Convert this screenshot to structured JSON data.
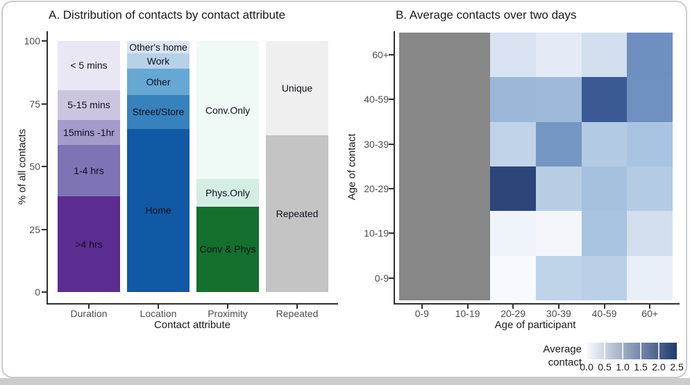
{
  "figure": {
    "background": "#ffffff",
    "card_border_color": "#c9cbcd",
    "missing_color": "#878787"
  },
  "chart_data": [
    {
      "type": "bar",
      "stacked": true,
      "title": "A. Distribution of contacts by contact attribute",
      "xlabel": "Contact attribute",
      "ylabel": "% of all contacts",
      "ylim": [
        0,
        100
      ],
      "yticks": [
        0,
        25,
        50,
        75,
        100
      ],
      "categories": [
        "Duration",
        "Location",
        "Proximity",
        "Repeated"
      ],
      "segment_order": "bottom-to-top",
      "bars": [
        {
          "category": "Duration",
          "segments": [
            {
              "label": ">4 hrs",
              "value": 38,
              "color": "#5b2d90"
            },
            {
              "label": "1-4 hrs",
              "value": 20.5,
              "color": "#7d73b5"
            },
            {
              "label": "15mins -1hr",
              "value": 10,
              "color": "#a49bcb"
            },
            {
              "label": "5-15 mins",
              "value": 12,
              "color": "#cbc5e0"
            },
            {
              "label": "< 5 mins",
              "value": 19.5,
              "color": "#e9e7f3"
            }
          ]
        },
        {
          "category": "Location",
          "segments": [
            {
              "label": "Home",
              "value": 65,
              "color": "#1159a4"
            },
            {
              "label": "Street/Store",
              "value": 13.5,
              "color": "#3781bd"
            },
            {
              "label": "Other",
              "value": 10.5,
              "color": "#66a7d3"
            },
            {
              "label": "Work",
              "value": 6,
              "color": "#b7d1e7"
            },
            {
              "label": "Other's home",
              "value": 5,
              "color": "#dbe4f2"
            }
          ]
        },
        {
          "category": "Proximity",
          "segments": [
            {
              "label": "Conv & Phys",
              "value": 34,
              "color": "#156f2d"
            },
            {
              "label": "Phys.Only",
              "value": 11,
              "color": "#d3ede3"
            },
            {
              "label": "Conv.Only",
              "value": 55,
              "color": "#eff9f6"
            }
          ]
        },
        {
          "category": "Repeated",
          "segments": [
            {
              "label": "Repeated",
              "value": 62.5,
              "color": "#c4c4c4"
            },
            {
              "label": "Unique",
              "value": 37.5,
              "color": "#efeff0"
            }
          ]
        }
      ]
    },
    {
      "type": "heatmap",
      "title": "B. Average contacts over two days",
      "xlabel": "Age of participant",
      "ylabel": "Age of contact",
      "x_categories": [
        "0-9",
        "10-19",
        "20-29",
        "30-39",
        "40-59",
        "60+"
      ],
      "y_categories_top_to_bottom": [
        "60+",
        "40-59",
        "30-39",
        "20-29",
        "10-19",
        "0-9"
      ],
      "missing_data_columns": [
        "0-9",
        "10-19"
      ],
      "missing_color": "#878787",
      "rows": [
        {
          "y": "60+",
          "values": [
            null,
            null,
            0.45,
            0.3,
            0.5,
            1.7
          ],
          "colors": [
            "#878787",
            "#878787",
            "#d8e2f0",
            "#e4ebf6",
            "#d3dfee",
            "#6f8fc0"
          ]
        },
        {
          "y": "40-59",
          "values": [
            null,
            null,
            1.2,
            1.2,
            2.3,
            1.65
          ],
          "colors": [
            "#878787",
            "#878787",
            "#9bb8d9",
            "#9dbada",
            "#3b5a95",
            "#6f90c1"
          ]
        },
        {
          "y": "30-39",
          "values": [
            null,
            null,
            0.8,
            1.6,
            0.95,
            1.0
          ],
          "colors": [
            "#878787",
            "#878787",
            "#c0d3e8",
            "#7396c3",
            "#b2cae2",
            "#a9c4e0"
          ]
        },
        {
          "y": "20-29",
          "values": [
            null,
            null,
            2.5,
            0.9,
            1.1,
            0.9
          ],
          "colors": [
            "#878787",
            "#878787",
            "#2e4579",
            "#b7cde4",
            "#a5c1de",
            "#b3cbe3"
          ]
        },
        {
          "y": "10-19",
          "values": [
            null,
            null,
            0.15,
            0.1,
            1.05,
            0.55
          ],
          "colors": [
            "#878787",
            "#878787",
            "#eff4fa",
            "#f2f6fb",
            "#a8c3df",
            "#d3dfee"
          ]
        },
        {
          "y": "0-9",
          "values": [
            null,
            null,
            0.1,
            0.8,
            0.85,
            0.25
          ],
          "colors": [
            "#878787",
            "#878787",
            "#f6f9fd",
            "#c0d4e9",
            "#bad0e6",
            "#e9eff7"
          ]
        }
      ],
      "legend": {
        "label_line1": "Average",
        "label_line2": "contact",
        "ticks": [
          "0.0",
          "0.5",
          "1.0",
          "1.5",
          "2.0",
          "2.5"
        ],
        "range": [
          0,
          2.5
        ],
        "gradient_start": "#f7fbff",
        "gradient_end": "#1e3a6d",
        "position": "bottom-right"
      }
    }
  ]
}
